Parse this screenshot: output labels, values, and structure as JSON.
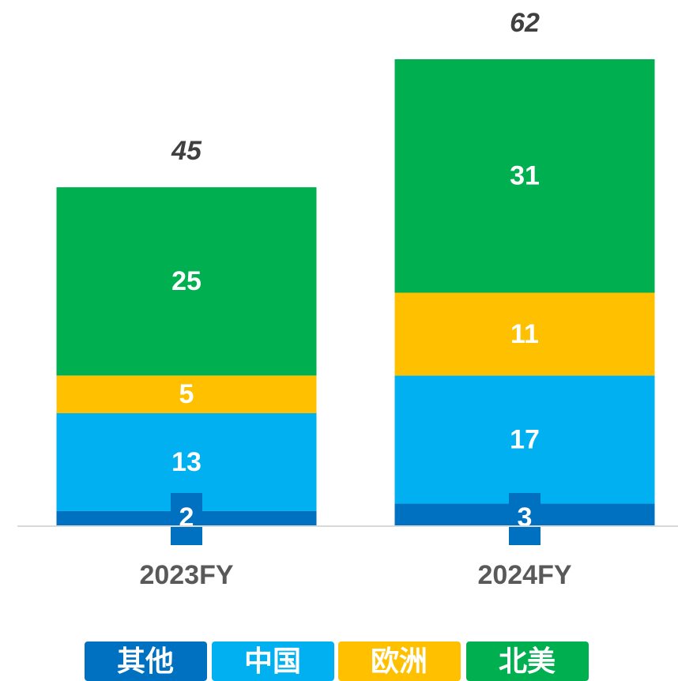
{
  "chart_data": {
    "type": "stacked_bar",
    "categories": [
      "2023FY",
      "2024FY"
    ],
    "series": [
      {
        "name": "其他",
        "color": "#0070c0",
        "values": [
          2,
          3
        ]
      },
      {
        "name": "中国",
        "color": "#00b0f0",
        "values": [
          13,
          17
        ]
      },
      {
        "name": "欧洲",
        "color": "#ffc000",
        "values": [
          5,
          11
        ]
      },
      {
        "name": "北美",
        "color": "#00b050",
        "values": [
          25,
          31
        ]
      }
    ],
    "totals": [
      45,
      62
    ],
    "legend": "bottom"
  }
}
